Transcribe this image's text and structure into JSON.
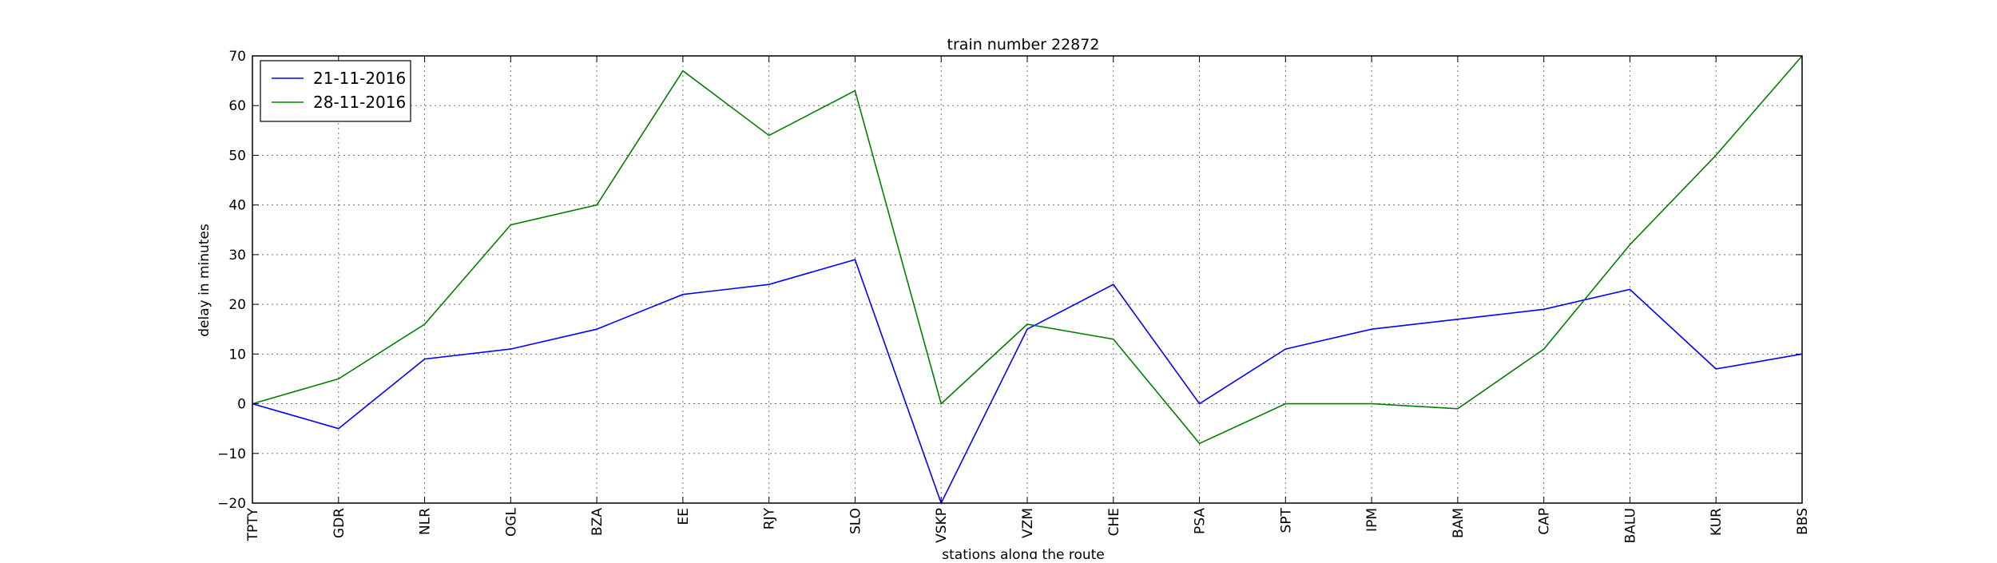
{
  "chart_data": {
    "type": "line",
    "title": "train number 22872",
    "xlabel": "stations along the route",
    "ylabel": "delay in minutes",
    "categories": [
      "TPTY",
      "GDR",
      "NLR",
      "OGL",
      "BZA",
      "EE",
      "RJY",
      "SLO",
      "VSKP",
      "VZM",
      "CHE",
      "PSA",
      "SPT",
      "IPM",
      "BAM",
      "CAP",
      "BALU",
      "KUR",
      "BBS"
    ],
    "ylim": [
      -20,
      70
    ],
    "yticks": [
      -20,
      -10,
      0,
      10,
      20,
      30,
      40,
      50,
      60,
      70
    ],
    "grid": true,
    "grid_style": "dotted",
    "legend_position": "top-left",
    "series": [
      {
        "name": "21-11-2016",
        "color": "#0000ff",
        "values": [
          0,
          -5,
          9,
          11,
          15,
          22,
          24,
          29,
          -20,
          15,
          24,
          0,
          11,
          15,
          17,
          19,
          23,
          7,
          10
        ]
      },
      {
        "name": "28-11-2016",
        "color": "#008000",
        "values": [
          0,
          5,
          16,
          36,
          40,
          67,
          54,
          63,
          0,
          16,
          13,
          -8,
          0,
          0,
          -1,
          11,
          32,
          50,
          70
        ]
      }
    ]
  }
}
